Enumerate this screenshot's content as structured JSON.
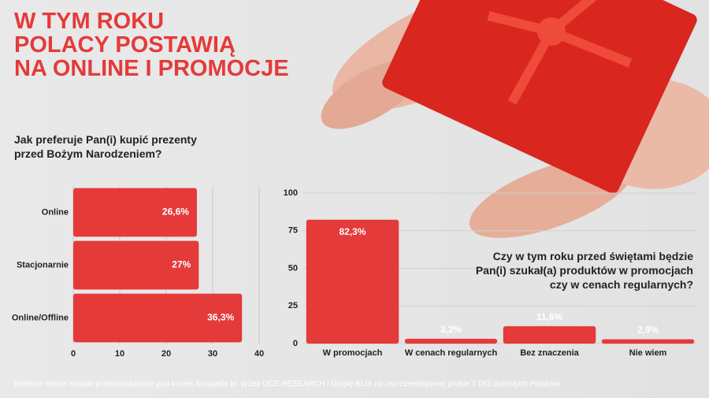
{
  "title_lines": [
    "W TYM ROKU",
    "POLACY POSTAWIĄ",
    "NA ONLINE I PROMOCJE"
  ],
  "chart_data": [
    {
      "type": "hbar",
      "title": "Jak preferuje Pan(i) kupić prezenty przed Bożym Narodzeniem?",
      "categories": [
        "Online",
        "Stacjonarnie",
        "Online/Offline"
      ],
      "values": [
        26.6,
        27,
        36.3
      ],
      "value_labels": [
        "26,6%",
        "27%",
        "36,3%"
      ],
      "color": "#e53a3a",
      "xlim": [
        0,
        40
      ],
      "xticks": [
        0,
        10,
        20,
        30,
        40
      ],
      "grid": true
    },
    {
      "type": "bar",
      "title": "Czy w tym roku przed świętami będzie Pan(i) szukał(a) produktów w promocjach czy w cenach regularnych?",
      "categories": [
        "W promocjach",
        "W cenach regularnych",
        "Bez znaczenia",
        "Nie wiem"
      ],
      "values": [
        82.3,
        3.2,
        11.6,
        2.9
      ],
      "value_labels": [
        "82,3%",
        "3,2%",
        "11,6%",
        "2,9%"
      ],
      "color": "#e53a3a",
      "ylim": [
        0,
        100
      ],
      "yticks": [
        0,
        25,
        50,
        75,
        100
      ],
      "grid": true
    }
  ],
  "footer": "Badanie online zostało przeprowadzone pod koniec listopada br. przez UCE RESEARCH i Grupę BLIX na reprezentatywnej próbie 1 061 dorosłych Polaków."
}
